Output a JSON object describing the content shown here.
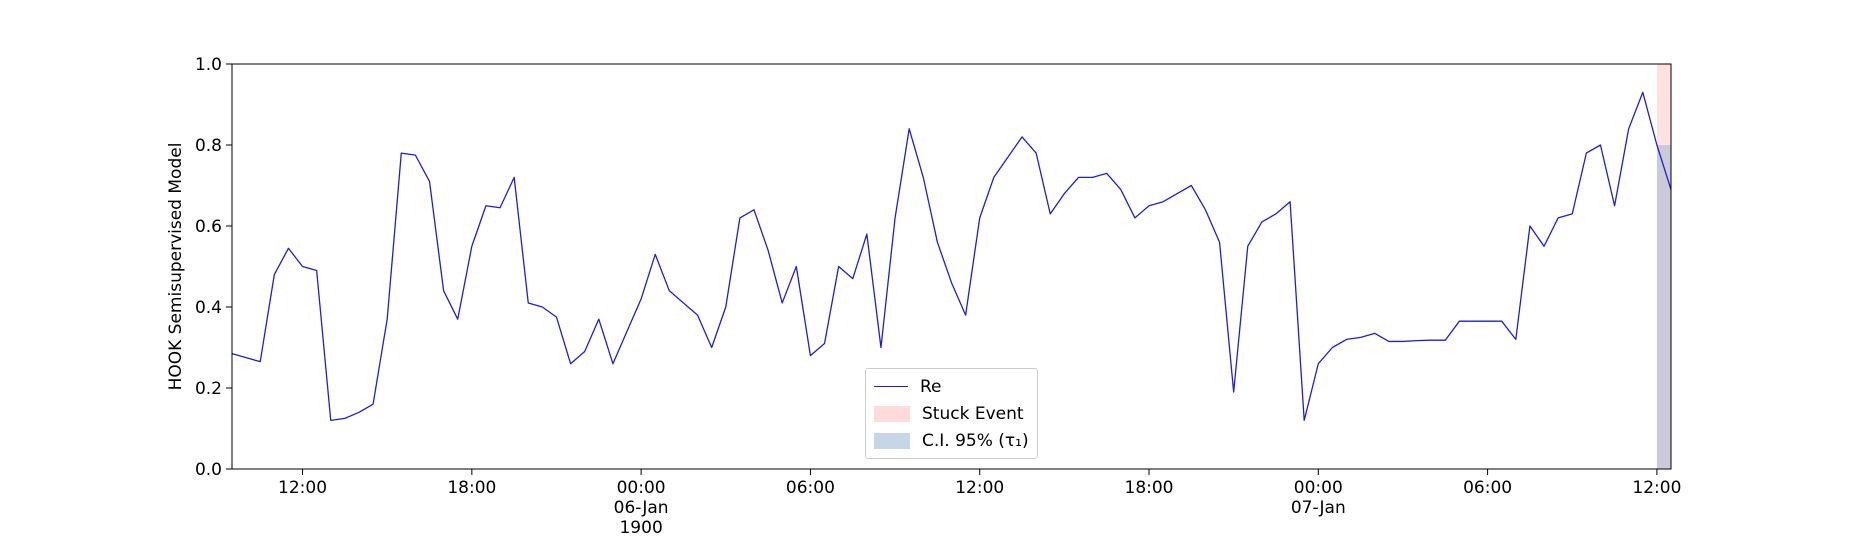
{
  "chart_data": {
    "type": "line",
    "y_label": "HOOK Semisupervised Model",
    "x": [
      "1900-01-05 09:30",
      "1900-01-05 10:00",
      "1900-01-05 10:30",
      "1900-01-05 11:00",
      "1900-01-05 11:30",
      "1900-01-05 12:00",
      "1900-01-05 12:30",
      "1900-01-05 13:00",
      "1900-01-05 13:30",
      "1900-01-05 14:00",
      "1900-01-05 14:30",
      "1900-01-05 15:00",
      "1900-01-05 15:30",
      "1900-01-05 16:00",
      "1900-01-05 16:30",
      "1900-01-05 17:00",
      "1900-01-05 17:30",
      "1900-01-05 18:00",
      "1900-01-05 18:30",
      "1900-01-05 19:00",
      "1900-01-05 19:30",
      "1900-01-05 20:00",
      "1900-01-05 20:30",
      "1900-01-05 21:00",
      "1900-01-05 21:30",
      "1900-01-05 22:00",
      "1900-01-05 22:30",
      "1900-01-05 23:00",
      "1900-01-05 23:30",
      "1900-01-06 00:00",
      "1900-01-06 00:30",
      "1900-01-06 01:00",
      "1900-01-06 01:30",
      "1900-01-06 02:00",
      "1900-01-06 02:30",
      "1900-01-06 03:00",
      "1900-01-06 03:30",
      "1900-01-06 04:00",
      "1900-01-06 04:30",
      "1900-01-06 05:00",
      "1900-01-06 05:30",
      "1900-01-06 06:00",
      "1900-01-06 06:30",
      "1900-01-06 07:00",
      "1900-01-06 07:30",
      "1900-01-06 08:00",
      "1900-01-06 08:30",
      "1900-01-06 09:00",
      "1900-01-06 09:30",
      "1900-01-06 10:00",
      "1900-01-06 10:30",
      "1900-01-06 11:00",
      "1900-01-06 11:30",
      "1900-01-06 12:00",
      "1900-01-06 12:30",
      "1900-01-06 13:00",
      "1900-01-06 13:30",
      "1900-01-06 14:00",
      "1900-01-06 14:30",
      "1900-01-06 15:00",
      "1900-01-06 15:30",
      "1900-01-06 16:00",
      "1900-01-06 16:30",
      "1900-01-06 17:00",
      "1900-01-06 17:30",
      "1900-01-06 18:00",
      "1900-01-06 18:30",
      "1900-01-06 19:00",
      "1900-01-06 19:30",
      "1900-01-06 20:00",
      "1900-01-06 20:30",
      "1900-01-06 21:00",
      "1900-01-06 21:30",
      "1900-01-06 22:00",
      "1900-01-06 22:30",
      "1900-01-06 23:00",
      "1900-01-06 23:30",
      "1900-01-07 00:00",
      "1900-01-07 00:30",
      "1900-01-07 01:00",
      "1900-01-07 01:30",
      "1900-01-07 02:00",
      "1900-01-07 02:30",
      "1900-01-07 03:00",
      "1900-01-07 03:30",
      "1900-01-07 04:00",
      "1900-01-07 04:30",
      "1900-01-07 05:00",
      "1900-01-07 05:30",
      "1900-01-07 06:00",
      "1900-01-07 06:30",
      "1900-01-07 07:00",
      "1900-01-07 07:30",
      "1900-01-07 08:00",
      "1900-01-07 08:30",
      "1900-01-07 09:00",
      "1900-01-07 09:30",
      "1900-01-07 10:00",
      "1900-01-07 10:30",
      "1900-01-07 11:00",
      "1900-01-07 11:30",
      "1900-01-07 12:00",
      "1900-01-07 12:30"
    ],
    "series": [
      {
        "name": "Re",
        "color": "#1f1fd0",
        "values": [
          0.285,
          0.275,
          0.265,
          0.48,
          0.545,
          0.5,
          0.49,
          0.12,
          0.125,
          0.14,
          0.16,
          0.37,
          0.78,
          0.775,
          0.71,
          0.44,
          0.37,
          0.55,
          0.65,
          0.645,
          0.72,
          0.41,
          0.4,
          0.375,
          0.26,
          0.29,
          0.37,
          0.26,
          0.34,
          0.42,
          0.53,
          0.44,
          0.41,
          0.38,
          0.3,
          0.4,
          0.62,
          0.64,
          0.54,
          0.41,
          0.5,
          0.28,
          0.31,
          0.5,
          0.47,
          0.58,
          0.3,
          0.62,
          0.84,
          0.72,
          0.56,
          0.46,
          0.38,
          0.62,
          0.72,
          0.77,
          0.82,
          0.78,
          0.63,
          0.68,
          0.72,
          0.72,
          0.73,
          0.69,
          0.62,
          0.65,
          0.66,
          0.68,
          0.7,
          0.64,
          0.56,
          0.19,
          0.55,
          0.61,
          0.63,
          0.66,
          0.12,
          0.26,
          0.3,
          0.32,
          0.325,
          0.335,
          0.315,
          0.315,
          0.317,
          0.318,
          0.318,
          0.365,
          0.365,
          0.365,
          0.365,
          0.32,
          0.6,
          0.55,
          0.62,
          0.63,
          0.78,
          0.8,
          0.65,
          0.84,
          0.93,
          0.8,
          0.69
        ]
      }
    ],
    "spans": [
      {
        "name": "Stuck Event",
        "color": "#ffb3b3",
        "x": [
          "1900-01-07 12:00",
          "1900-01-07 12:30"
        ],
        "y": [
          0,
          1
        ]
      },
      {
        "name": "C.I. 95% (τ₁)",
        "color": "#7fa8cc",
        "x": [
          "1900-01-07 12:00",
          "1900-01-07 12:30"
        ],
        "y": [
          0,
          0.8
        ]
      }
    ],
    "xlim": [
      "1900-01-05 09:30",
      "1900-01-07 12:30"
    ],
    "xticks": [
      {
        "value": "1900-01-05 12:00",
        "label": "12:00"
      },
      {
        "value": "1900-01-05 18:00",
        "label": "18:00"
      },
      {
        "value": "1900-01-06 00:00",
        "label": "00:00\n06-Jan\n1900"
      },
      {
        "value": "1900-01-06 06:00",
        "label": "06:00"
      },
      {
        "value": "1900-01-06 12:00",
        "label": "12:00"
      },
      {
        "value": "1900-01-06 18:00",
        "label": "18:00"
      },
      {
        "value": "1900-01-07 00:00",
        "label": "00:00\n07-Jan"
      },
      {
        "value": "1900-01-07 06:00",
        "label": "06:00"
      },
      {
        "value": "1900-01-07 12:00",
        "label": "12:00"
      }
    ],
    "ylim": [
      0,
      1
    ],
    "yticks": [
      {
        "value": 0,
        "label": "0.0"
      },
      0.2,
      0.4,
      0.6,
      0.8,
      {
        "value": 1,
        "label": "1.0"
      }
    ],
    "grid": false,
    "legend": "lower center"
  }
}
